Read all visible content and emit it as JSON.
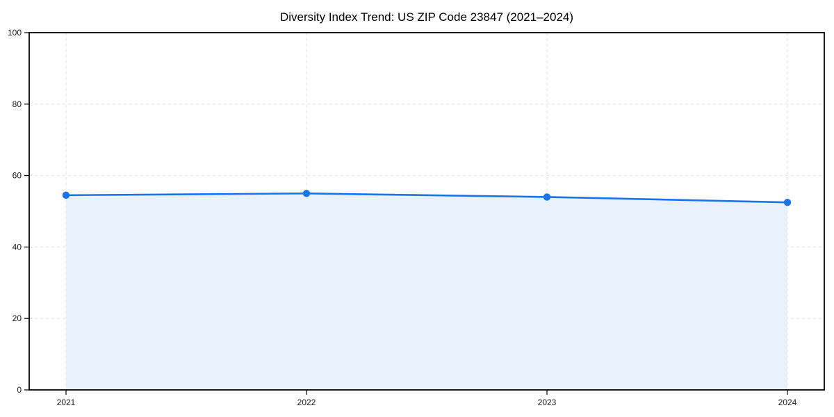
{
  "chart_data": {
    "type": "line",
    "title": "Diversity Index Trend: US ZIP Code 23847 (2021–2024)",
    "categories": [
      "2021",
      "2022",
      "2023",
      "2024"
    ],
    "series": [
      {
        "name": "Diversity Index",
        "values": [
          54.5,
          55,
          54,
          52.5
        ]
      }
    ],
    "xlabel": "",
    "ylabel": "",
    "ylim": [
      0,
      100
    ],
    "yticks": [
      0,
      20,
      40,
      60,
      80,
      100
    ],
    "grid": "dashed-both-axes",
    "legend": "none",
    "area_fill": true,
    "marker": "circle",
    "colors": {
      "line": "#1a73e8",
      "marker": "#1a73e8",
      "area": "#e8f1fc",
      "grid": "#e0e0e0",
      "spine": "#000000",
      "tick_label": "#1a1a1a",
      "title": "#000000",
      "background": "#ffffff"
    }
  }
}
